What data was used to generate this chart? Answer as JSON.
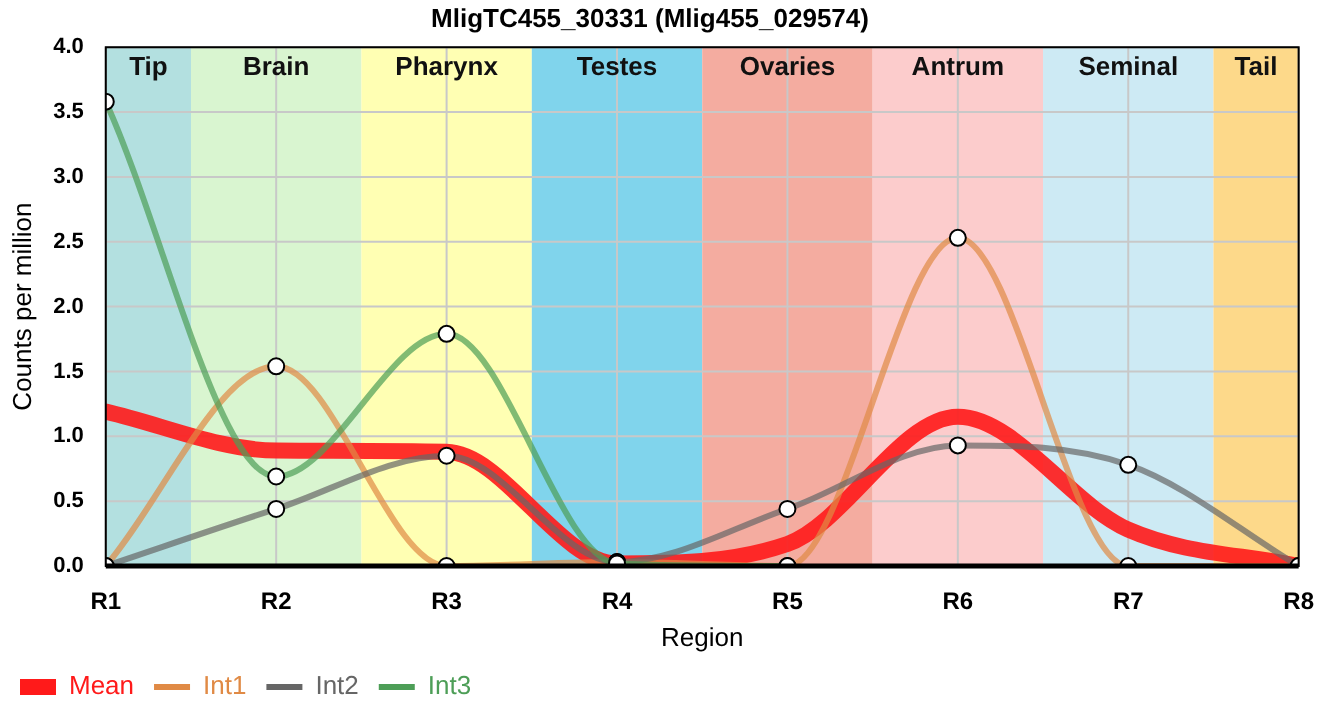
{
  "chart_data": {
    "type": "line",
    "title": "MligTC455_30331 (Mlig455_029574)",
    "xlabel": "Region",
    "ylabel": "Counts per million",
    "categories": [
      "R1",
      "R2",
      "R3",
      "R4",
      "R5",
      "R6",
      "R7",
      "R8"
    ],
    "ylim": [
      0,
      4
    ],
    "yticks": [
      {
        "value": 0,
        "label": "0.0"
      },
      {
        "value": 0.5,
        "label": "0.5"
      },
      {
        "value": 1,
        "label": "1.0"
      },
      {
        "value": 1.5,
        "label": "1.5"
      },
      {
        "value": 2,
        "label": "2.0"
      },
      {
        "value": 2.5,
        "label": "2.5"
      },
      {
        "value": 3,
        "label": "3.0"
      },
      {
        "value": 3.5,
        "label": "3.5"
      },
      {
        "value": 4,
        "label": "4.0"
      }
    ],
    "grid": true,
    "legend": "bottom left",
    "marker": "circle",
    "series": [
      {
        "name": "Mean",
        "color": "#ff1a1a",
        "marker": "none",
        "values": [
          1.19,
          0.89,
          0.88,
          0.02,
          0.17,
          1.15,
          0.28,
          0
        ]
      },
      {
        "name": "Int1",
        "color": "#e08a45",
        "values": [
          0,
          1.54,
          0,
          0.03,
          0,
          2.53,
          0,
          0
        ]
      },
      {
        "name": "Int2",
        "color": "#666666",
        "values": [
          0,
          0.44,
          0.85,
          0.03,
          0.44,
          0.93,
          0.78,
          0
        ]
      },
      {
        "name": "Int3",
        "color": "#4d9e57",
        "values": [
          3.58,
          0.69,
          1.79,
          0.02,
          0,
          null,
          null,
          null
        ]
      }
    ],
    "bands": [
      {
        "axis": "x",
        "from": "R1",
        "to": "R1",
        "label": "Tip",
        "color": "#b3e0e0"
      },
      {
        "axis": "x",
        "from": "R2",
        "to": "R2",
        "label": "Brain",
        "color": "#d9f5d0"
      },
      {
        "axis": "x",
        "from": "R3",
        "to": "R3",
        "label": "Pharynx",
        "color": "#ffffb3"
      },
      {
        "axis": "x",
        "from": "R4",
        "to": "R4",
        "label": "Testes",
        "color": "#80d4ec"
      },
      {
        "axis": "x",
        "from": "R5",
        "to": "R5",
        "label": "Ovaries",
        "color": "#f4aca0"
      },
      {
        "axis": "x",
        "from": "R6",
        "to": "R6",
        "label": "Antrum",
        "color": "#fccccc"
      },
      {
        "axis": "x",
        "from": "R7",
        "to": "R7",
        "label": "Seminal",
        "color": "#cdeaf4"
      },
      {
        "axis": "x",
        "from": "R8",
        "to": "R8",
        "label": "Tail",
        "color": "#fdd98a"
      }
    ]
  }
}
